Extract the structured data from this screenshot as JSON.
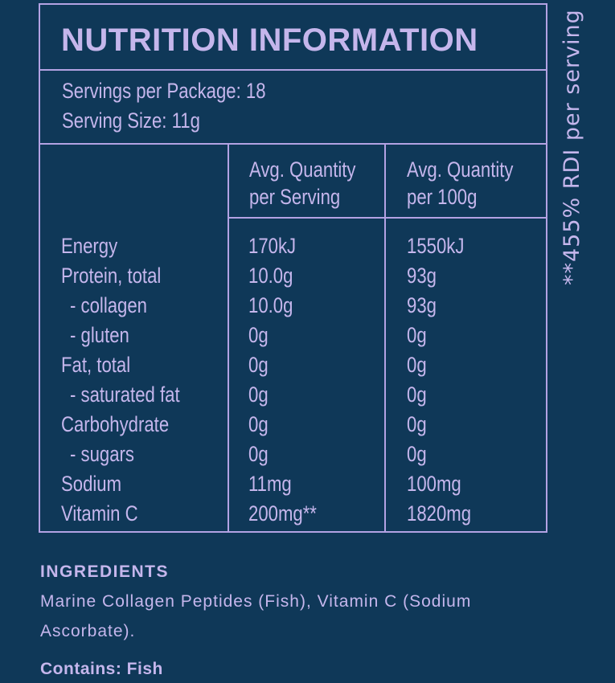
{
  "nutrition_panel": {
    "title": "NUTRITION INFORMATION",
    "servings_per_package": "Servings per Package: 18",
    "serving_size": "Serving Size: 11g",
    "column_headers": {
      "per_serving_line1": "Avg. Quantity",
      "per_serving_line2": "per Serving",
      "per_100g_line1": "Avg. Quantity",
      "per_100g_line2": "per 100g"
    },
    "rows": [
      {
        "name": "Energy",
        "per_serving": "170kJ",
        "per_100g": "1550kJ"
      },
      {
        "name": "Protein, total",
        "per_serving": "10.0g",
        "per_100g": "93g"
      },
      {
        "name": "- collagen",
        "per_serving": "10.0g",
        "per_100g": "93g"
      },
      {
        "name": "- gluten",
        "per_serving": "0g",
        "per_100g": "0g"
      },
      {
        "name": "Fat, total",
        "per_serving": "0g",
        "per_100g": "0g"
      },
      {
        "name": "- saturated fat",
        "per_serving": "0g",
        "per_100g": "0g"
      },
      {
        "name": "Carbohydrate",
        "per_serving": "0g",
        "per_100g": "0g"
      },
      {
        "name": "- sugars",
        "per_serving": "0g",
        "per_100g": "0g"
      },
      {
        "name": "Sodium",
        "per_serving": "11mg",
        "per_100g": "100mg"
      },
      {
        "name": "Vitamin C",
        "per_serving": "200mg**",
        "per_100g": "1820mg"
      }
    ]
  },
  "side_note": "**455% RDI per serving",
  "ingredients": {
    "heading": "INGREDIENTS",
    "text": "Marine Collagen Peptides (Fish), Vitamin C (Sodium Ascorbate).",
    "contains": "Contains: Fish"
  },
  "colors": {
    "background": "#0f3858",
    "text": "#c5b6ec",
    "border": "#b3a2e3"
  }
}
